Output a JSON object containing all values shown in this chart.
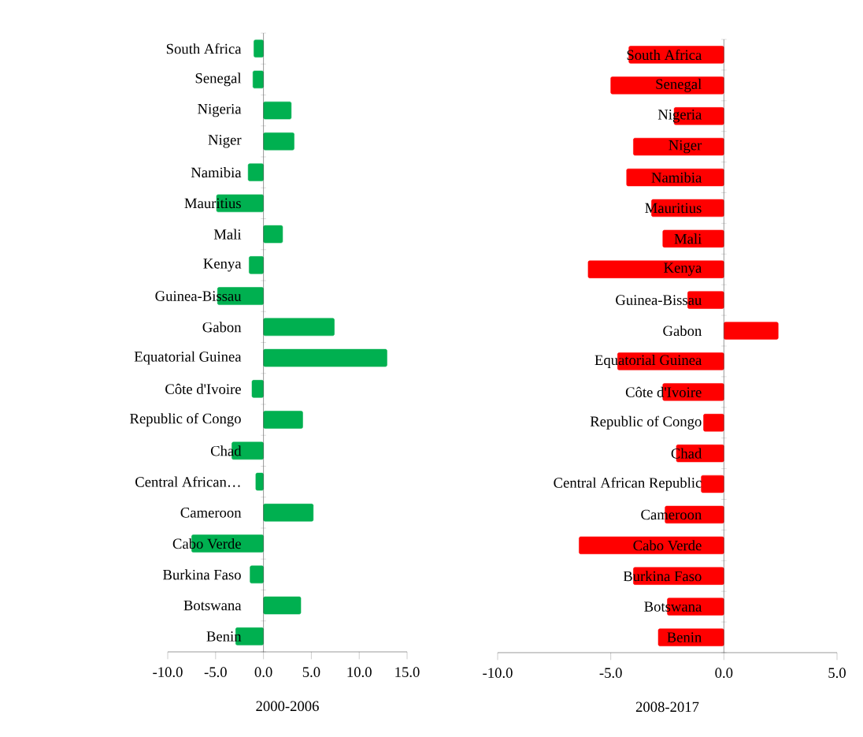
{
  "chart_data": [
    {
      "type": "bar",
      "orientation": "horizontal",
      "xlabel": "2000-2006",
      "color": "#00b050",
      "categories": [
        "South Africa",
        "Senegal",
        "Nigeria",
        "Niger",
        "Namibia",
        "Mauritius",
        "Mali",
        "Kenya",
        "Guinea-Bissau",
        "Gabon",
        "Equatorial Guinea",
        "Côte d'Ivoire",
        "Republic of Congo",
        "Chad",
        "Central African…",
        "Cameroon",
        "Cabo Verde",
        "Burkina Faso",
        "Botswana",
        "Benin"
      ],
      "values": [
        -1.0,
        -1.1,
        2.9,
        3.2,
        -1.6,
        -4.9,
        2.0,
        -1.5,
        -4.8,
        7.4,
        12.9,
        -1.2,
        4.1,
        -3.3,
        -0.8,
        5.2,
        -7.5,
        -1.4,
        3.9,
        -2.9
      ],
      "xlim": [
        -10,
        15
      ],
      "xticks": [
        {
          "value": -10,
          "label": "-10.0"
        },
        {
          "value": -5,
          "label": "-5.0"
        },
        {
          "value": 0,
          "label": "0.0"
        },
        {
          "value": 5,
          "label": "5.0"
        },
        {
          "value": 10,
          "label": "10.0"
        },
        {
          "value": 15,
          "label": "15.0"
        }
      ]
    },
    {
      "type": "bar",
      "orientation": "horizontal",
      "xlabel": "2008-2017",
      "color": "#ff0000",
      "categories": [
        "South Africa",
        "Senegal",
        "Nigeria",
        "Niger",
        "Namibia",
        "Mauritius",
        "Mali",
        "Kenya",
        "Guinea-Bissau",
        "Gabon",
        "Equatorial Guinea",
        "Côte d'Ivoire",
        "Republic of Congo",
        "Chad",
        "Central African Republic",
        "Cameroon",
        "Cabo Verde",
        "Burkina Faso",
        "Botswana",
        "Benin"
      ],
      "values": [
        -4.2,
        -5.0,
        -2.2,
        -4.0,
        -4.3,
        -3.2,
        -2.7,
        -6.0,
        -1.6,
        2.4,
        -4.7,
        -2.7,
        -0.9,
        -2.1,
        -1.0,
        -2.6,
        -6.4,
        -4.0,
        -2.5,
        -2.9
      ],
      "xlim": [
        -10,
        5
      ],
      "xticks": [
        {
          "value": -10,
          "label": "-10.0"
        },
        {
          "value": -5,
          "label": "-5.0"
        },
        {
          "value": 0,
          "label": "0.0"
        },
        {
          "value": 5,
          "label": "5.0"
        }
      ]
    }
  ]
}
